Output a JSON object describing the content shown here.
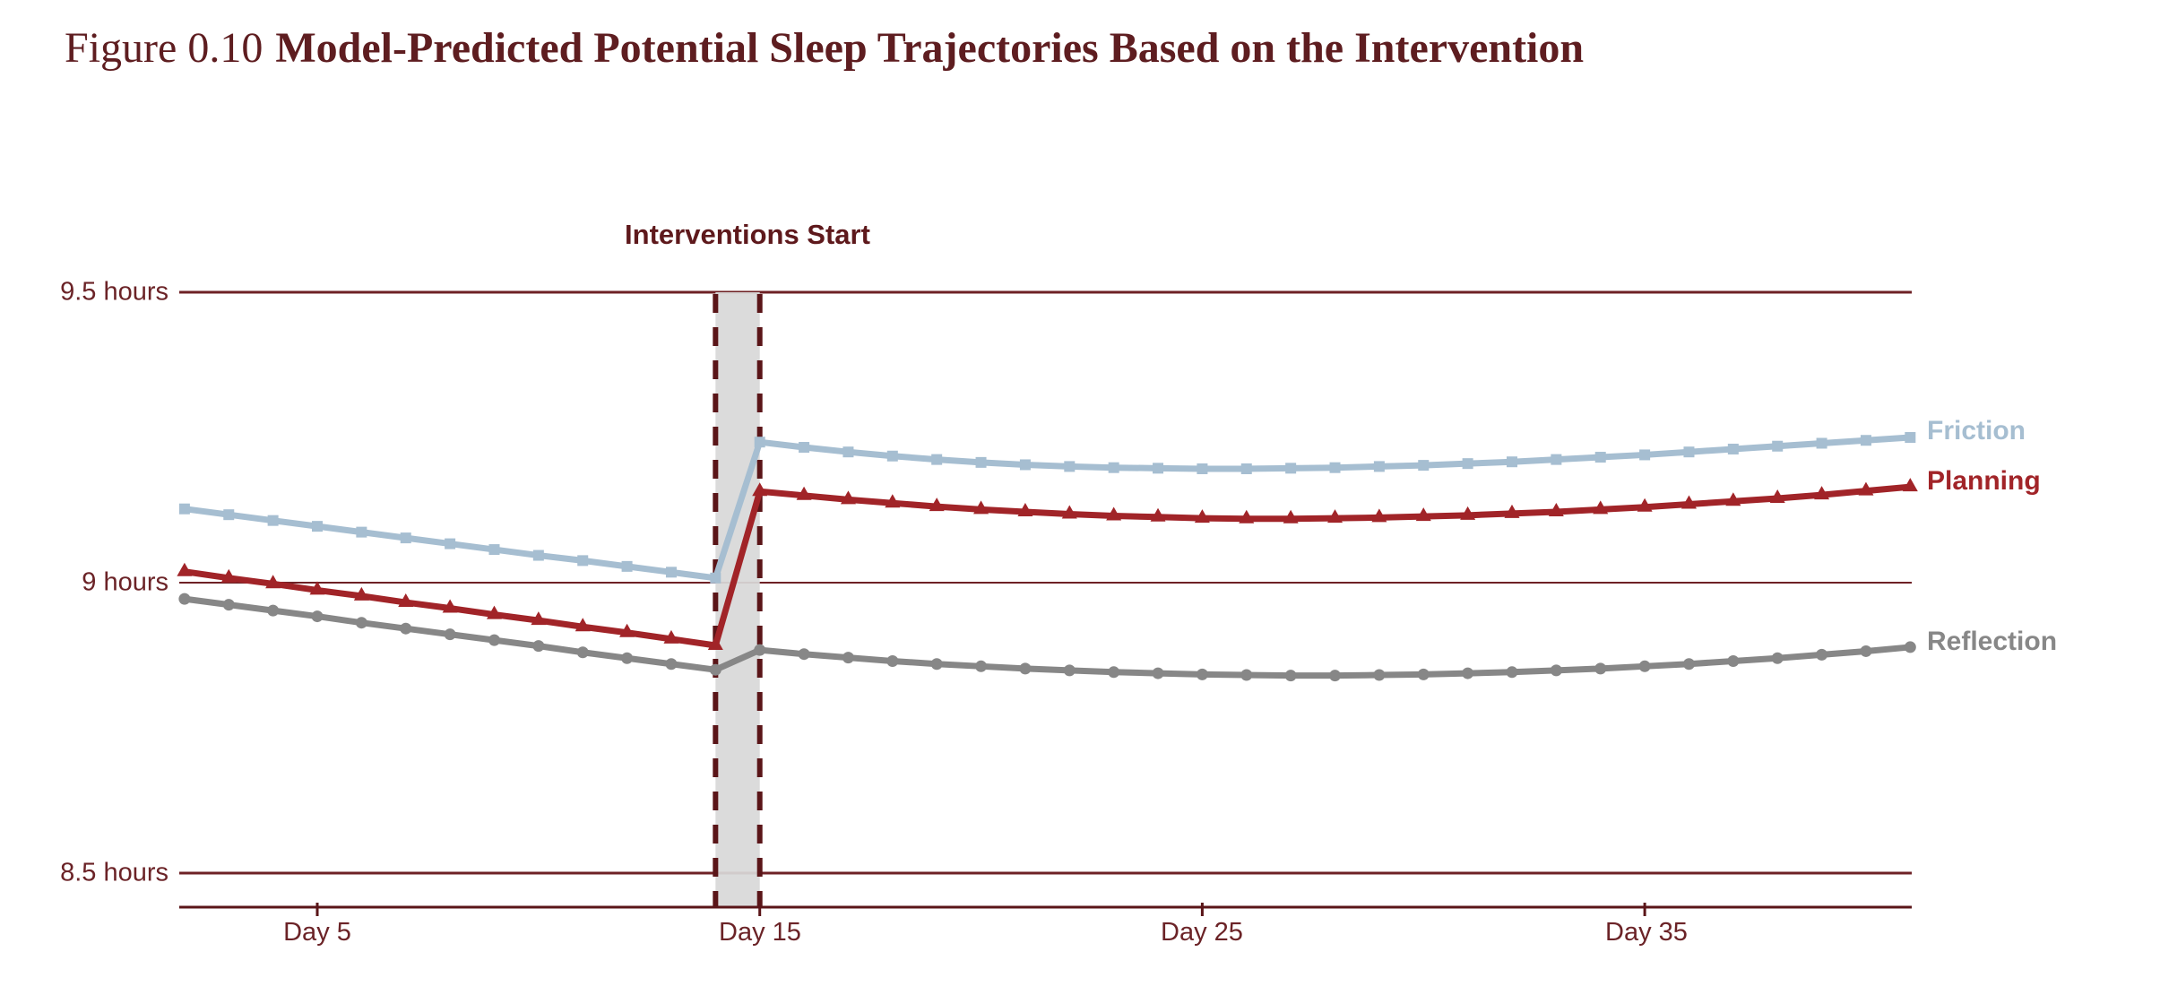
{
  "figure": {
    "label": "Figure 0.10",
    "title": "Model-Predicted Potential Sleep Trajectories Based on the Intervention"
  },
  "annotation": {
    "text": "Interventions Start"
  },
  "colors": {
    "title_maroon": "#5e1d20",
    "axis_text_maroon": "#6b2327",
    "gridline_maroon": "#6e2125",
    "axis_line_maroon": "#5a1518",
    "dashed_line_maroon": "#5a1518",
    "band_gray": "#d8d8d8",
    "friction_blue": "#a6bed1",
    "planning_red": "#a12428",
    "reflection_gray": "#878787"
  },
  "chart_data": {
    "type": "line",
    "title": "Figure 0.10 Model-Predicted Potential Sleep Trajectories Based on the Intervention",
    "xlabel": "",
    "ylabel": "",
    "grid": "horizontal",
    "legend_position": "right-end-labels",
    "xlim_days": [
      2,
      41
    ],
    "ylim_hours": [
      8.35,
      9.55
    ],
    "x": [
      2,
      3,
      4,
      5,
      6,
      7,
      8,
      9,
      10,
      11,
      12,
      13,
      14,
      15,
      16,
      17,
      18,
      19,
      20,
      21,
      22,
      23,
      24,
      25,
      26,
      27,
      28,
      29,
      30,
      31,
      32,
      33,
      34,
      35,
      36,
      37,
      38,
      39,
      40,
      41
    ],
    "x_ticks": [
      {
        "value": 5,
        "label": "Day 5"
      },
      {
        "value": 15,
        "label": "Day 15"
      },
      {
        "value": 25,
        "label": "Day 25"
      },
      {
        "value": 35,
        "label": "Day 35"
      }
    ],
    "y_ticks": [
      {
        "value": 9.5,
        "label": "9.5 hours"
      },
      {
        "value": 9.0,
        "label": "9 hours"
      },
      {
        "value": 8.5,
        "label": "8.5 hours"
      }
    ],
    "intervention_band": {
      "from_day": 14,
      "to_day": 15,
      "label": "Interventions Start",
      "fill": "#d8d8d8",
      "edge_style": "dashed"
    },
    "series": [
      {
        "name": "Friction",
        "color": "#a6bed1",
        "marker": "square",
        "values": [
          9.127,
          9.117,
          9.107,
          9.097,
          9.087,
          9.077,
          9.067,
          9.057,
          9.047,
          9.038,
          9.028,
          9.018,
          9.008,
          9.242,
          9.233,
          9.225,
          9.218,
          9.212,
          9.207,
          9.203,
          9.2,
          9.198,
          9.197,
          9.196,
          9.196,
          9.197,
          9.198,
          9.2,
          9.202,
          9.205,
          9.208,
          9.212,
          9.216,
          9.22,
          9.225,
          9.23,
          9.235,
          9.24,
          9.245,
          9.25
        ]
      },
      {
        "name": "Planning",
        "color": "#a12428",
        "marker": "triangle",
        "values": [
          9.019,
          9.008,
          8.998,
          8.987,
          8.977,
          8.966,
          8.956,
          8.945,
          8.935,
          8.924,
          8.914,
          8.903,
          8.892,
          9.157,
          9.15,
          9.143,
          9.137,
          9.131,
          9.126,
          9.122,
          9.118,
          9.115,
          9.113,
          9.111,
          9.11,
          9.11,
          9.111,
          9.112,
          9.114,
          9.116,
          9.119,
          9.122,
          9.126,
          9.13,
          9.135,
          9.14,
          9.145,
          9.151,
          9.158,
          9.165
        ]
      },
      {
        "name": "Reflection",
        "color": "#878787",
        "marker": "circle",
        "values": [
          8.972,
          8.962,
          8.952,
          8.942,
          8.931,
          8.921,
          8.911,
          8.901,
          8.891,
          8.88,
          8.87,
          8.86,
          8.85,
          8.884,
          8.877,
          8.871,
          8.865,
          8.86,
          8.856,
          8.852,
          8.849,
          8.846,
          8.844,
          8.842,
          8.841,
          8.84,
          8.84,
          8.841,
          8.842,
          8.844,
          8.846,
          8.849,
          8.852,
          8.856,
          8.86,
          8.865,
          8.87,
          8.876,
          8.882,
          8.889
        ]
      }
    ]
  }
}
